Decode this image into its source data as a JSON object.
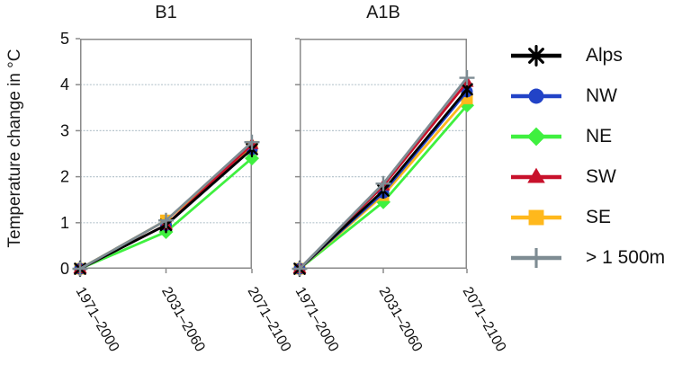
{
  "figure": {
    "y_axis_label": "Temperature change in °C",
    "legend_position": "right",
    "style": {
      "frame_color": "#8a8a8a",
      "grid_color": "#b7c5cd",
      "text_color": "#111111",
      "background": "#ffffff"
    }
  },
  "chart_data": [
    {
      "type": "line",
      "title": "B1",
      "categories": [
        "1971–2000",
        "2031–2060",
        "2071–2100"
      ],
      "xlabel": "",
      "ylabel": "Temperature change in °C",
      "ylim": [
        0,
        5
      ],
      "yticks": [
        0,
        1,
        2,
        3,
        4,
        5
      ],
      "grid": true,
      "series": [
        {
          "name": "Alps",
          "color": "#000000",
          "marker": "asterisk",
          "values": [
            0,
            0.95,
            2.6
          ]
        },
        {
          "name": "NW",
          "color": "#2243c7",
          "marker": "circle",
          "values": [
            0,
            0.95,
            2.6
          ]
        },
        {
          "name": "NE",
          "color": "#3ff03f",
          "marker": "diamond",
          "values": [
            0,
            0.8,
            2.4
          ]
        },
        {
          "name": "SW",
          "color": "#c8112b",
          "marker": "triangle",
          "values": [
            0,
            0.95,
            2.7
          ]
        },
        {
          "name": "SE",
          "color": "#ffb81c",
          "marker": "square",
          "values": [
            0,
            1.05,
            2.65
          ]
        },
        {
          "name": "> 1 500m",
          "color": "#7e8c93",
          "marker": "plus",
          "values": [
            0,
            1.05,
            2.75
          ]
        }
      ]
    },
    {
      "type": "line",
      "title": "A1B",
      "categories": [
        "1971–2000",
        "2031–2060",
        "2071–2100"
      ],
      "xlabel": "",
      "ylabel": "Temperature change in °C",
      "ylim": [
        0,
        5
      ],
      "yticks": [
        0,
        1,
        2,
        3,
        4,
        5
      ],
      "grid": true,
      "series": [
        {
          "name": "Alps",
          "color": "#000000",
          "marker": "asterisk",
          "values": [
            0,
            1.7,
            3.9
          ]
        },
        {
          "name": "NW",
          "color": "#2243c7",
          "marker": "circle",
          "values": [
            0,
            1.65,
            3.85
          ]
        },
        {
          "name": "NE",
          "color": "#3ff03f",
          "marker": "diamond",
          "values": [
            0,
            1.45,
            3.55
          ]
        },
        {
          "name": "SW",
          "color": "#c8112b",
          "marker": "triangle",
          "values": [
            0,
            1.8,
            4.05
          ]
        },
        {
          "name": "SE",
          "color": "#ffb81c",
          "marker": "square",
          "values": [
            0,
            1.6,
            3.7
          ]
        },
        {
          "name": "> 1 500m",
          "color": "#7e8c93",
          "marker": "plus",
          "values": [
            0,
            1.85,
            4.15
          ]
        }
      ]
    }
  ]
}
